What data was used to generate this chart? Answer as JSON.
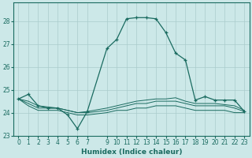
{
  "xlabel": "Humidex (Indice chaleur)",
  "ylabel": "",
  "xlim": [
    -0.5,
    23.5
  ],
  "ylim": [
    23.0,
    28.8
  ],
  "yticks": [
    23,
    24,
    25,
    26,
    27,
    28
  ],
  "xticks": [
    0,
    1,
    2,
    3,
    4,
    5,
    6,
    7,
    9,
    10,
    11,
    12,
    13,
    14,
    15,
    16,
    17,
    18,
    19,
    20,
    21,
    22,
    23
  ],
  "background_color": "#cce8e8",
  "grid_color": "#aacccc",
  "line_color": "#1a6b60",
  "lines": [
    {
      "x": [
        0,
        1,
        2,
        3,
        4,
        5,
        6,
        7,
        9,
        10,
        11,
        12,
        13,
        14,
        15,
        16,
        17,
        18,
        19,
        20,
        21,
        22,
        23
      ],
      "y": [
        24.6,
        24.3,
        24.1,
        24.1,
        24.1,
        24.0,
        23.9,
        23.9,
        24.0,
        24.1,
        24.1,
        24.2,
        24.2,
        24.3,
        24.3,
        24.3,
        24.2,
        24.1,
        24.1,
        24.1,
        24.1,
        24.0,
        24.0
      ],
      "has_markers": false
    },
    {
      "x": [
        0,
        1,
        2,
        3,
        4,
        5,
        6,
        7,
        9,
        10,
        11,
        12,
        13,
        14,
        15,
        16,
        17,
        18,
        19,
        20,
        21,
        22,
        23
      ],
      "y": [
        24.6,
        24.4,
        24.2,
        24.2,
        24.2,
        24.1,
        24.0,
        24.0,
        24.1,
        24.2,
        24.3,
        24.4,
        24.4,
        24.5,
        24.5,
        24.5,
        24.4,
        24.3,
        24.3,
        24.3,
        24.3,
        24.2,
        24.05
      ],
      "has_markers": false
    },
    {
      "x": [
        0,
        1,
        2,
        3,
        4,
        5,
        6,
        7,
        9,
        10,
        11,
        12,
        13,
        14,
        15,
        16,
        17,
        18,
        19,
        20,
        21,
        22,
        23
      ],
      "y": [
        24.6,
        24.5,
        24.3,
        24.25,
        24.2,
        24.1,
        24.0,
        24.05,
        24.2,
        24.3,
        24.4,
        24.5,
        24.55,
        24.6,
        24.6,
        24.65,
        24.5,
        24.4,
        24.4,
        24.4,
        24.35,
        24.3,
        24.1
      ],
      "has_markers": false
    },
    {
      "x": [
        0,
        1,
        2,
        3,
        4,
        5,
        6,
        7,
        9,
        10,
        11,
        12,
        13,
        14,
        15,
        16,
        17,
        18,
        19,
        20,
        21,
        22,
        23
      ],
      "y": [
        24.6,
        24.8,
        24.3,
        24.2,
        24.2,
        23.9,
        23.3,
        24.05,
        26.8,
        27.2,
        28.1,
        28.15,
        28.15,
        28.1,
        27.5,
        26.6,
        26.3,
        24.55,
        24.7,
        24.55,
        24.55,
        24.55,
        24.05
      ],
      "has_markers": true
    }
  ]
}
